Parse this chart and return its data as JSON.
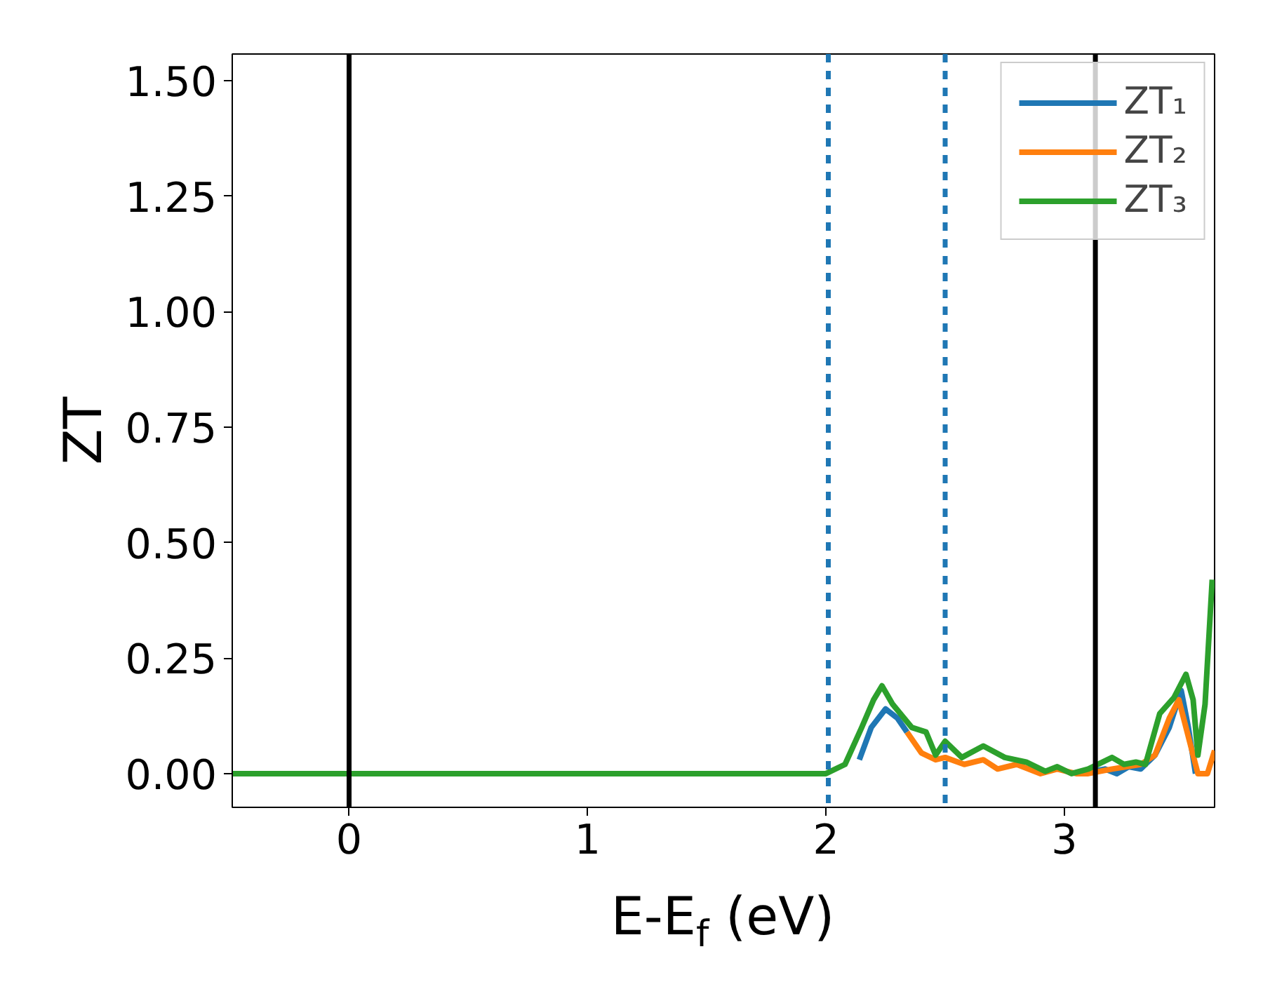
{
  "chart_data": {
    "type": "line",
    "xlabel": "E-E$_{f}$ (eV)",
    "ylabel": "ZT",
    "xlim": [
      -0.49,
      3.63
    ],
    "ylim": [
      -0.073,
      1.558
    ],
    "xticks": [
      0,
      1,
      2,
      3
    ],
    "yticks": [
      {
        "value": 0,
        "label": "0.00"
      },
      {
        "value": 0.25,
        "label": "0.25"
      },
      {
        "value": 0.5,
        "label": "0.50"
      },
      {
        "value": 0.75,
        "label": "0.75"
      },
      {
        "value": 1.0,
        "label": "1.00"
      },
      {
        "value": 1.25,
        "label": "1.25"
      },
      {
        "value": 1.5,
        "label": "1.50"
      }
    ],
    "grid": false,
    "legend": "top right",
    "line_style": "solid",
    "marker": "none",
    "series": [
      {
        "name": "ZT₁",
        "color": "#1f77b4",
        "x": [
          2.14,
          2.19,
          2.25,
          2.3,
          2.34,
          2.7,
          3.12,
          3.17,
          3.22,
          3.27,
          3.32,
          3.38,
          3.44,
          3.49,
          3.52,
          3.55
        ],
        "values": [
          0.03,
          0.1,
          0.14,
          0.12,
          0.09,
          null,
          0.005,
          0.01,
          0,
          0.015,
          0.01,
          0.04,
          0.1,
          0.18,
          0.1,
          0
        ]
      },
      {
        "name": "ZT₂",
        "color": "#ff7f0e",
        "x": [
          2.34,
          2.4,
          2.46,
          2.5,
          2.58,
          2.66,
          2.72,
          2.8,
          2.9,
          2.97,
          3.05,
          3.1,
          3.2,
          3.32,
          3.38,
          3.44,
          3.48,
          3.52,
          3.56,
          3.6,
          3.63
        ],
        "values": [
          0.09,
          0.045,
          0.03,
          0.035,
          0.02,
          0.03,
          0.01,
          0.02,
          0,
          0.01,
          0,
          0,
          0.01,
          0.02,
          0.04,
          0.12,
          0.16,
          0.08,
          0,
          0,
          0.05
        ]
      },
      {
        "name": "ZT₃",
        "color": "#2ca02c",
        "x": [
          -0.49,
          1.9,
          2.0,
          2.08,
          2.15,
          2.2,
          2.235,
          2.28,
          2.36,
          2.42,
          2.46,
          2.5,
          2.57,
          2.66,
          2.75,
          2.84,
          2.92,
          2.97,
          3.03,
          3.1,
          3.2,
          3.25,
          3.3,
          3.34,
          3.4,
          3.46,
          3.51,
          3.54,
          3.56,
          3.59,
          3.62
        ],
        "values": [
          0,
          0,
          0,
          0.02,
          0.1,
          0.16,
          0.19,
          0.15,
          0.1,
          0.09,
          0.04,
          0.07,
          0.035,
          0.06,
          0.035,
          0.025,
          0.005,
          0.015,
          0,
          0.01,
          0.035,
          0.02,
          0.025,
          0.02,
          0.13,
          0.165,
          0.215,
          0.16,
          0.04,
          0.15,
          0.42
        ]
      }
    ],
    "ref_lines": [
      {
        "axis": "x",
        "value": 0,
        "color": "#000000",
        "line_style": "solid"
      },
      {
        "axis": "x",
        "value": 3.13,
        "color": "#000000",
        "line_style": "solid"
      },
      {
        "axis": "x",
        "value": 2.01,
        "color": "#1f77b4",
        "line_style": "dashed"
      },
      {
        "axis": "x",
        "value": 2.5,
        "color": "#1f77b4",
        "line_style": "dashed"
      }
    ]
  }
}
